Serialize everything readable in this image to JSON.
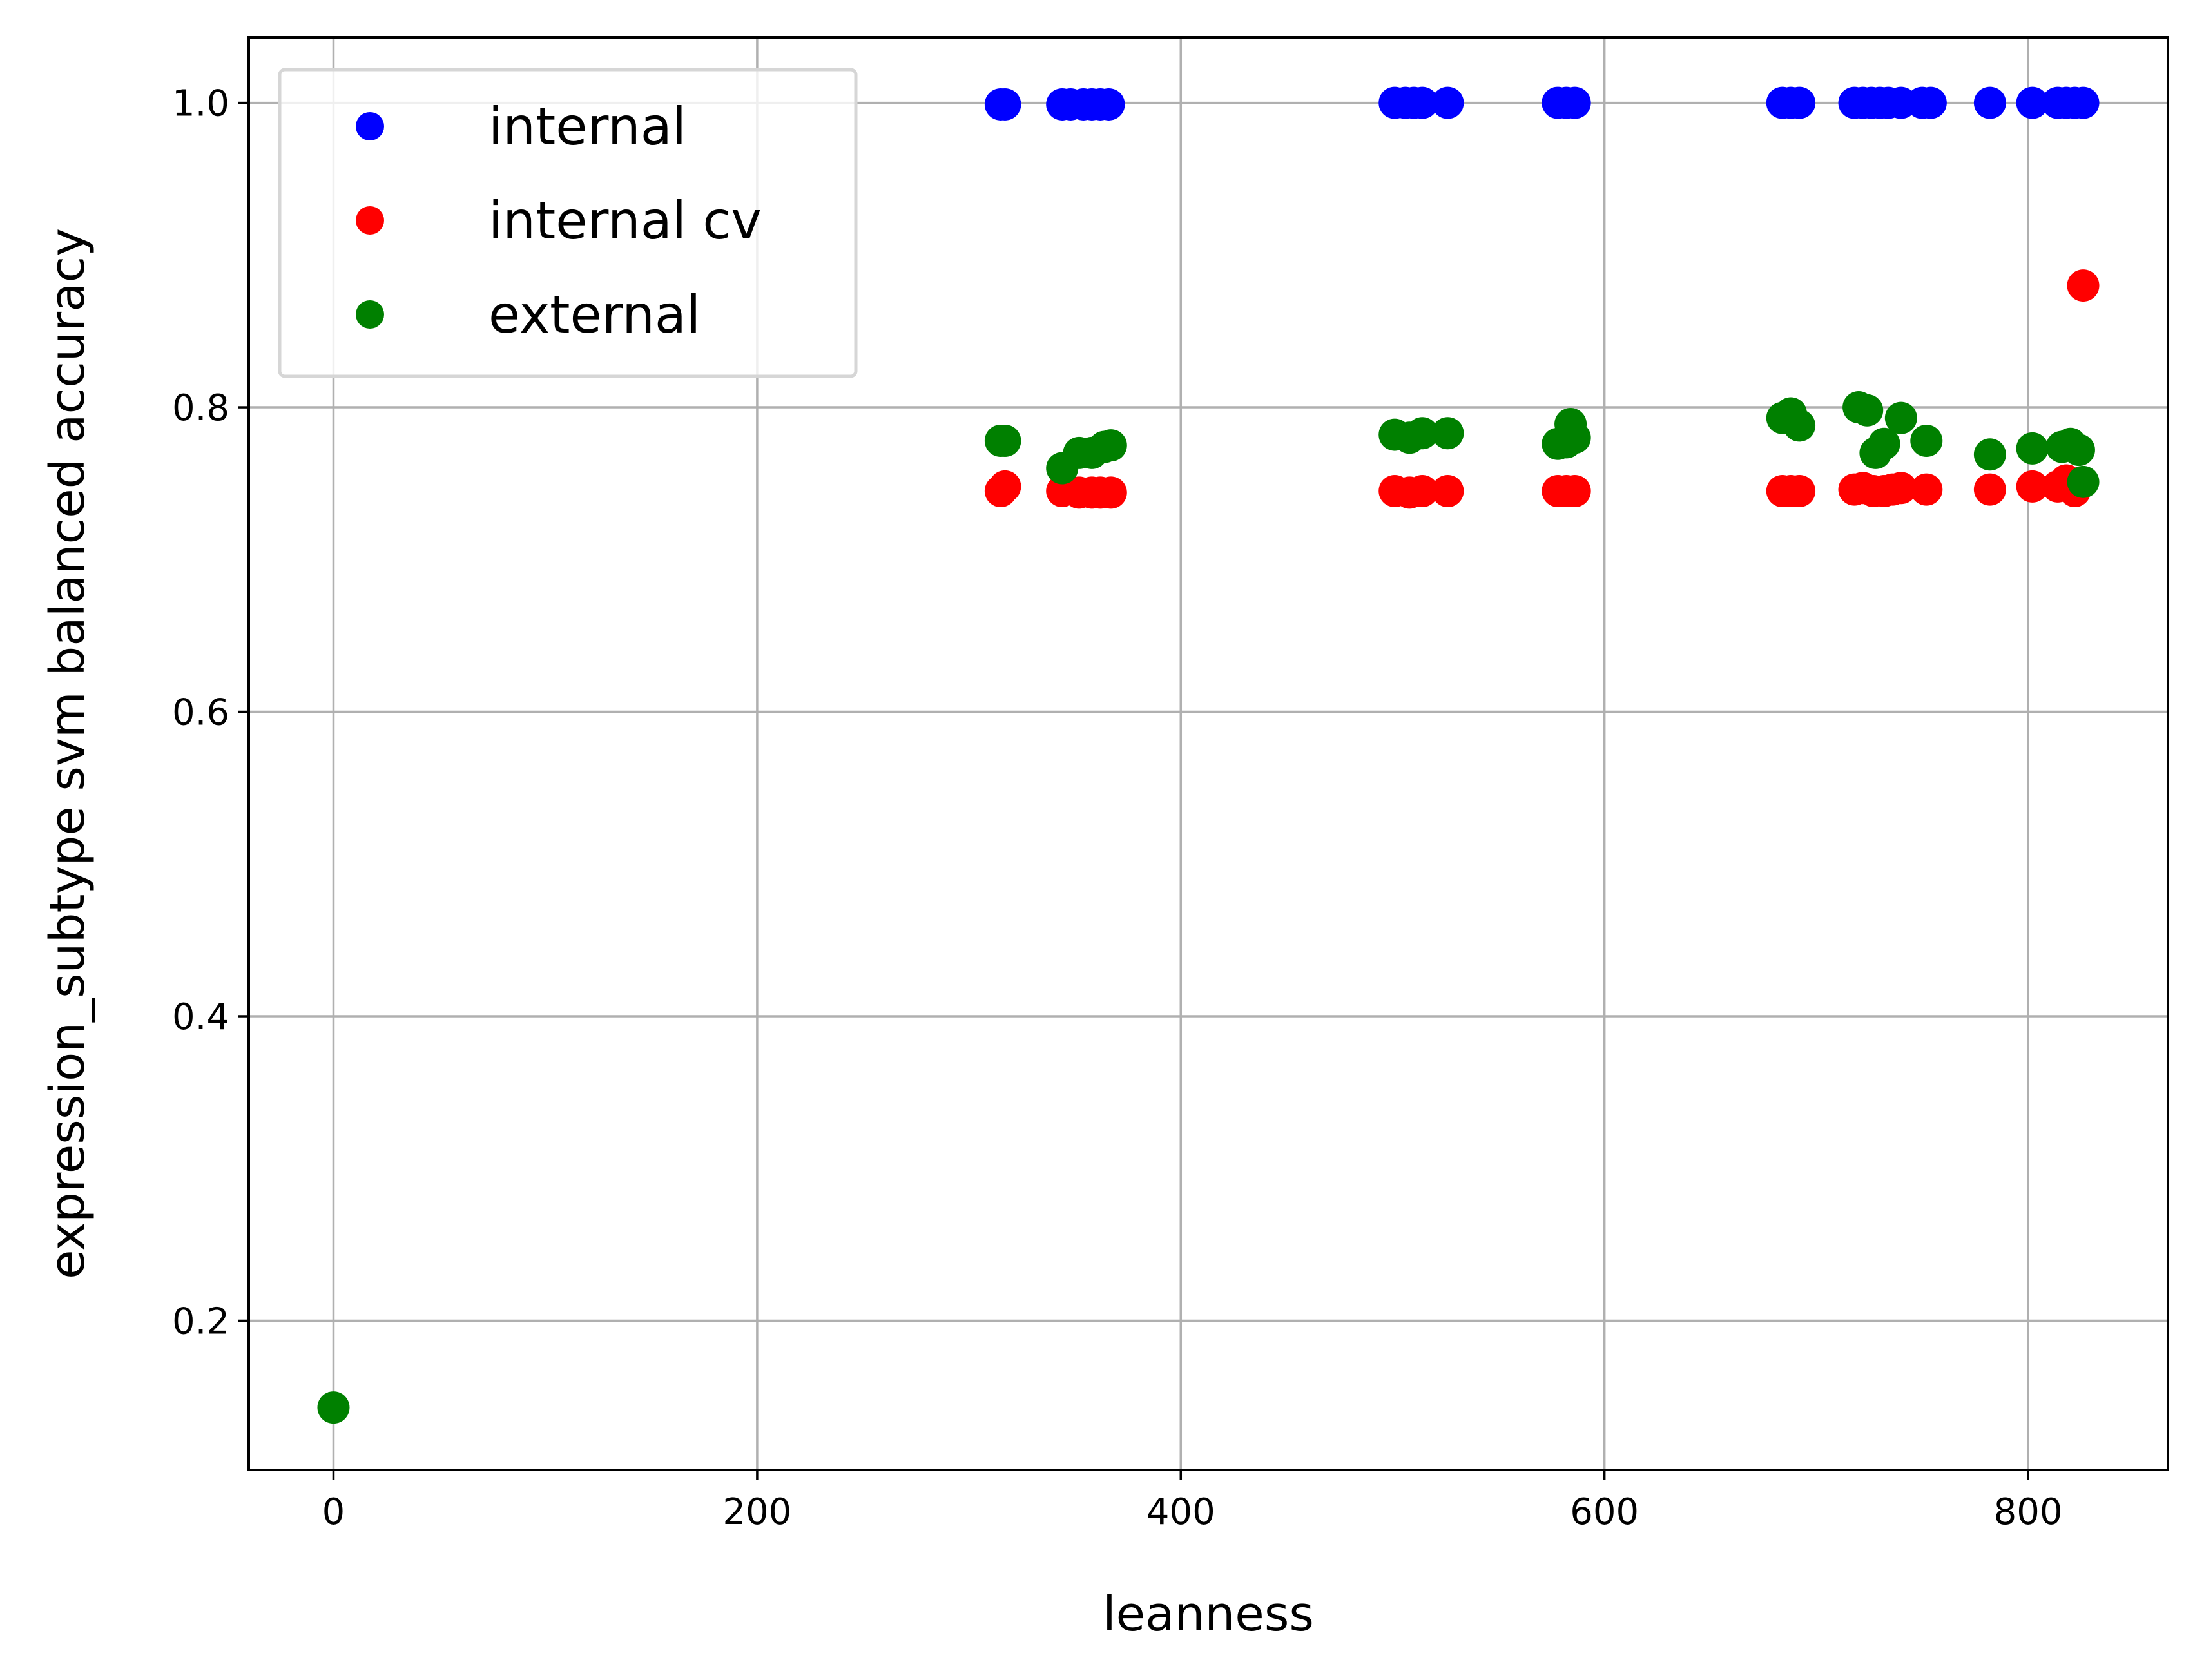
{
  "chart_data": {
    "type": "scatter",
    "title": "",
    "xlabel": "leanness",
    "ylabel": "expression_subtype svm balanced accuracy",
    "xlim": [
      -40,
      866
    ],
    "ylim": [
      0.102,
      1.043
    ],
    "xticks": [
      0,
      200,
      400,
      600,
      800
    ],
    "yticks": [
      0.2,
      0.4,
      0.6,
      0.8,
      1.0
    ],
    "xtick_labels": [
      "0",
      "200",
      "400",
      "600",
      "800"
    ],
    "ytick_labels": [
      "0.2",
      "0.4",
      "0.6",
      "0.8",
      "1.0"
    ],
    "grid": true,
    "legend_position": "upper-left",
    "series": [
      {
        "name": "internal",
        "color": "#0000ff",
        "points": [
          [
            315,
            0.999
          ],
          [
            317,
            0.999
          ],
          [
            344,
            0.999
          ],
          [
            348,
            0.999
          ],
          [
            354,
            0.999
          ],
          [
            358,
            0.999
          ],
          [
            362,
            0.999
          ],
          [
            366,
            0.999
          ],
          [
            501,
            1.0
          ],
          [
            506,
            1.0
          ],
          [
            510,
            1.0
          ],
          [
            514,
            1.0
          ],
          [
            526,
            1.0
          ],
          [
            578,
            1.0
          ],
          [
            582,
            1.0
          ],
          [
            586,
            1.0
          ],
          [
            684,
            1.0
          ],
          [
            688,
            1.0
          ],
          [
            692,
            1.0
          ],
          [
            718,
            1.0
          ],
          [
            722,
            1.0
          ],
          [
            726,
            1.0
          ],
          [
            730,
            1.0
          ],
          [
            734,
            1.0
          ],
          [
            740,
            1.0
          ],
          [
            750,
            1.0
          ],
          [
            754,
            1.0
          ],
          [
            782,
            1.0
          ],
          [
            802,
            1.0
          ],
          [
            814,
            1.0
          ],
          [
            818,
            1.0
          ],
          [
            822,
            1.0
          ],
          [
            826,
            1.0
          ]
        ]
      },
      {
        "name": "internal cv",
        "color": "#ff0000",
        "points": [
          [
            315,
            0.745
          ],
          [
            317,
            0.748
          ],
          [
            344,
            0.745
          ],
          [
            352,
            0.744
          ],
          [
            358,
            0.744
          ],
          [
            362,
            0.744
          ],
          [
            367,
            0.744
          ],
          [
            501,
            0.745
          ],
          [
            508,
            0.744
          ],
          [
            514,
            0.745
          ],
          [
            526,
            0.745
          ],
          [
            578,
            0.745
          ],
          [
            582,
            0.745
          ],
          [
            586,
            0.745
          ],
          [
            684,
            0.745
          ],
          [
            688,
            0.745
          ],
          [
            692,
            0.745
          ],
          [
            718,
            0.746
          ],
          [
            722,
            0.747
          ],
          [
            727,
            0.745
          ],
          [
            732,
            0.745
          ],
          [
            736,
            0.746
          ],
          [
            740,
            0.747
          ],
          [
            752,
            0.746
          ],
          [
            782,
            0.746
          ],
          [
            802,
            0.748
          ],
          [
            814,
            0.748
          ],
          [
            818,
            0.752
          ],
          [
            822,
            0.745
          ],
          [
            826,
            0.88
          ]
        ]
      },
      {
        "name": "external",
        "color": "#008000",
        "points": [
          [
            0,
            0.143
          ],
          [
            315,
            0.778
          ],
          [
            317,
            0.778
          ],
          [
            344,
            0.76
          ],
          [
            352,
            0.77
          ],
          [
            358,
            0.77
          ],
          [
            364,
            0.774
          ],
          [
            367,
            0.775
          ],
          [
            501,
            0.782
          ],
          [
            508,
            0.78
          ],
          [
            514,
            0.783
          ],
          [
            526,
            0.783
          ],
          [
            578,
            0.776
          ],
          [
            582,
            0.777
          ],
          [
            584,
            0.789
          ],
          [
            586,
            0.78
          ],
          [
            684,
            0.793
          ],
          [
            688,
            0.796
          ],
          [
            692,
            0.788
          ],
          [
            720,
            0.8
          ],
          [
            724,
            0.798
          ],
          [
            728,
            0.77
          ],
          [
            732,
            0.776
          ],
          [
            740,
            0.793
          ],
          [
            752,
            0.778
          ],
          [
            782,
            0.769
          ],
          [
            802,
            0.773
          ],
          [
            816,
            0.774
          ],
          [
            820,
            0.776
          ],
          [
            824,
            0.772
          ],
          [
            826,
            0.751
          ]
        ]
      }
    ]
  }
}
